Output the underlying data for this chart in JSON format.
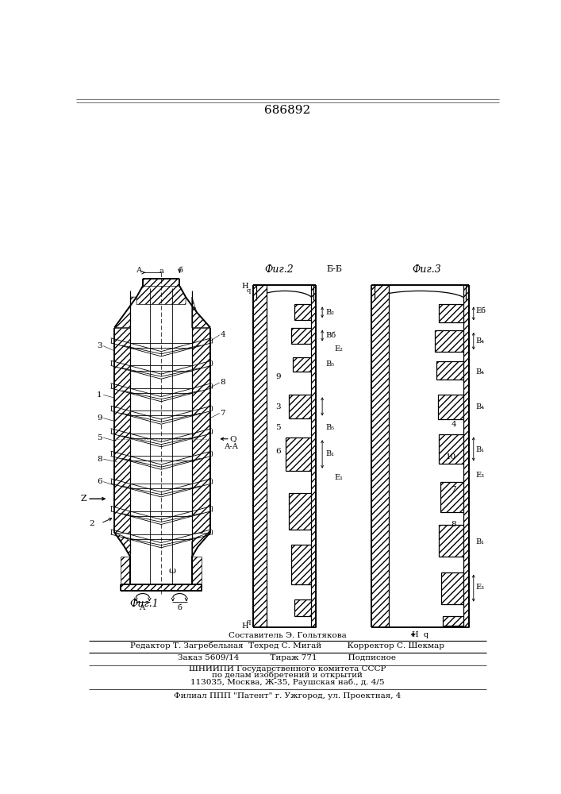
{
  "title": "686892",
  "background_color": "#ffffff",
  "fig1_label": "Фиг.1",
  "fig2_label": "Фиг.2",
  "fig3_label": "Фиг.3",
  "bb_label": "Б-Б",
  "aa_label": "А-А",
  "footer_lines": [
    "Составитель Э. Гольтякова",
    "Редактор Т. Загребельная  Техред С. Мигай          Корректор С. Шекмар",
    "Заказ 5609/14            Тираж 771            Подписное",
    "ШНИИПИ Государственного комитета СССР",
    "по делам изобретений и открытий",
    "113035, Москва, Ж-35, Раушская наб., д. 4/5",
    "Филиал ППП \"Патент\" г. Ужгород, ул. Проектная, 4"
  ]
}
